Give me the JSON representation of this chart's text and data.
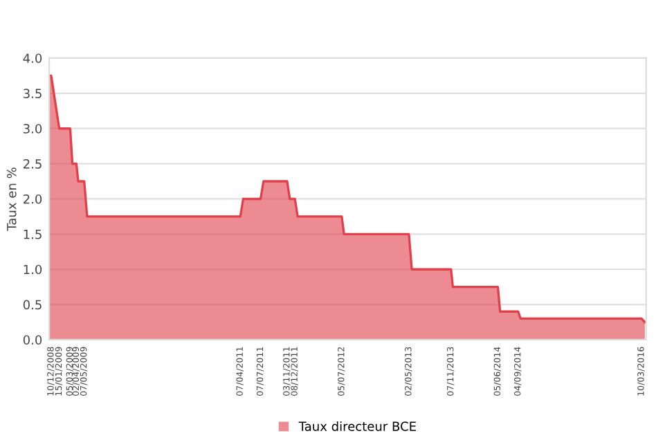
{
  "chart_data": {
    "type": "area",
    "ylabel": "Taux en %",
    "x": [
      "2008-12-01",
      "2008-12-10",
      "2009-01-15",
      "2009-03-05",
      "2009-03-15",
      "2009-04-02",
      "2009-04-10",
      "2009-05-07",
      "2009-05-20",
      "2011-04-07",
      "2011-04-20",
      "2011-07-07",
      "2011-07-20",
      "2011-11-03",
      "2011-11-15",
      "2011-12-08",
      "2011-12-20",
      "2012-07-05",
      "2012-07-15",
      "2013-05-02",
      "2013-05-15",
      "2013-11-07",
      "2013-11-15",
      "2014-06-05",
      "2014-06-15",
      "2014-09-04",
      "2014-09-15",
      "2016-03-10",
      "2016-03-25"
    ],
    "series": [
      {
        "name": "Taux directeur BCE",
        "color": "#e0404a",
        "values": [
          3.75,
          3.75,
          3.0,
          3.0,
          2.5,
          2.5,
          2.25,
          2.25,
          1.75,
          1.75,
          2.0,
          2.0,
          2.25,
          2.25,
          2.0,
          2.0,
          1.75,
          1.75,
          1.5,
          1.5,
          1.0,
          1.0,
          0.75,
          0.75,
          0.4,
          0.4,
          0.3,
          0.3,
          0.25
        ]
      }
    ],
    "xlim": [
      "2008-12-01",
      "2016-03-31"
    ],
    "xticks": [
      {
        "value": "2008-12-10",
        "label": "10/12/2008"
      },
      {
        "value": "2009-01-15",
        "label": "15/01/2009"
      },
      {
        "value": "2009-03-05",
        "label": "05/03/2009"
      },
      {
        "value": "2009-04-02",
        "label": "02/04/2009"
      },
      {
        "value": "2009-05-07",
        "label": "07/05/2009"
      },
      {
        "value": "2011-04-07",
        "label": "07/04/2011"
      },
      {
        "value": "2011-07-07",
        "label": "07/07/2011"
      },
      {
        "value": "2011-11-03",
        "label": "03/11/2011"
      },
      {
        "value": "2011-12-08",
        "label": "08/12/2011"
      },
      {
        "value": "2012-07-05",
        "label": "05/07/2012"
      },
      {
        "value": "2013-05-02",
        "label": "02/05/2013"
      },
      {
        "value": "2013-11-07",
        "label": "07/11/2013"
      },
      {
        "value": "2014-06-05",
        "label": "05/06/2014"
      },
      {
        "value": "2014-09-04",
        "label": "04/09/2014"
      },
      {
        "value": "2016-03-10",
        "label": "10/03/2016"
      }
    ],
    "ylim": [
      0,
      4
    ],
    "yticks": [
      {
        "value": 0,
        "label": "0.0"
      },
      {
        "value": 0.5,
        "label": "0.5"
      },
      {
        "value": 1,
        "label": "1.0"
      },
      {
        "value": 1.5,
        "label": "1.5"
      },
      {
        "value": 2,
        "label": "2.0"
      },
      {
        "value": 2.5,
        "label": "2.5"
      },
      {
        "value": 3,
        "label": "3.0"
      },
      {
        "value": 3.5,
        "label": "3.5"
      },
      {
        "value": 4,
        "label": "4.0"
      }
    ],
    "grid": "y",
    "legend": "bottom",
    "marker": "none"
  }
}
